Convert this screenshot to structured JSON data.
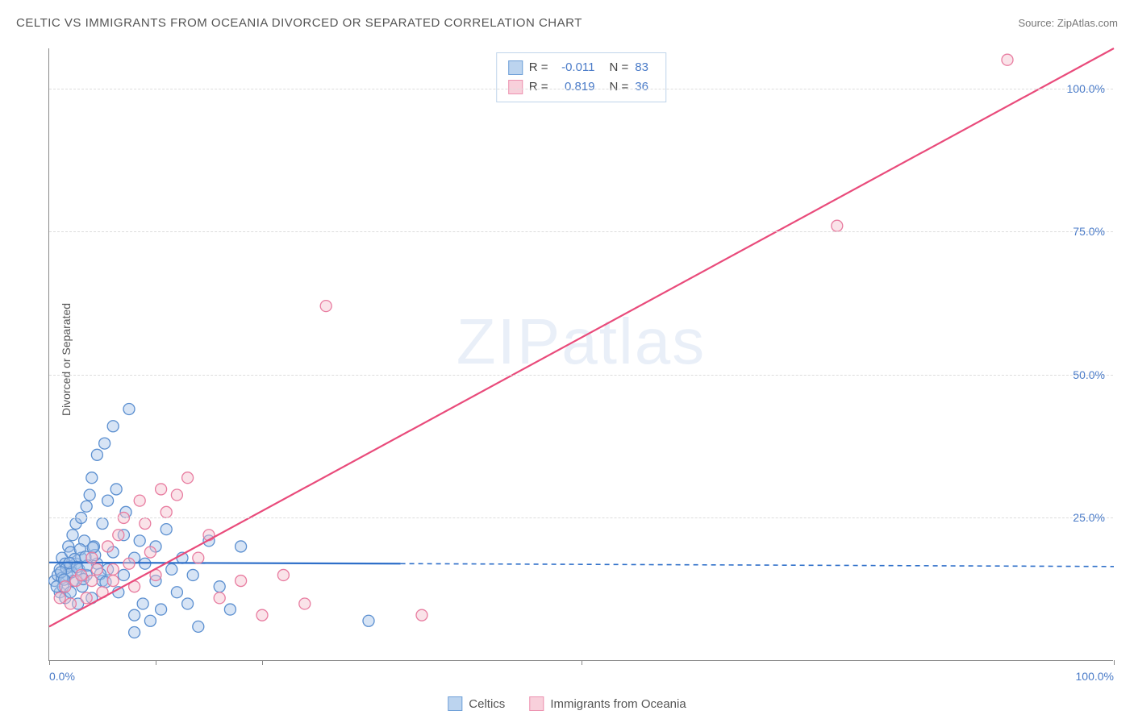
{
  "title": "CELTIC VS IMMIGRANTS FROM OCEANIA DIVORCED OR SEPARATED CORRELATION CHART",
  "source": "Source: ZipAtlas.com",
  "ylabel": "Divorced or Separated",
  "watermark_a": "ZIP",
  "watermark_b": "atlas",
  "chart": {
    "type": "scatter",
    "xlim": [
      0,
      100
    ],
    "ylim": [
      0,
      107
    ],
    "x_ticks": [
      0,
      10,
      20,
      50,
      100
    ],
    "x_tick_labels": {
      "0": "0.0%",
      "100": "100.0%"
    },
    "y_gridlines": [
      25,
      50,
      75,
      100
    ],
    "y_tick_labels": [
      "25.0%",
      "50.0%",
      "75.0%",
      "100.0%"
    ],
    "background": "#ffffff",
    "grid_color": "#dddddd",
    "axis_color": "#888888",
    "label_color": "#4a7bc8",
    "marker_radius": 7,
    "marker_opacity": 0.45,
    "series": [
      {
        "name": "Celtics",
        "color_fill": "#a7c4e8",
        "color_stroke": "#5b8fd0",
        "swatch_fill": "#bcd4ef",
        "swatch_border": "#6fa0d8",
        "R": "-0.011",
        "N": "83",
        "trend": {
          "solid": {
            "x1": 0,
            "y1": 17.2,
            "x2": 33,
            "y2": 17.0
          },
          "dashed": {
            "x1": 33,
            "y1": 17.0,
            "x2": 100,
            "y2": 16.5
          },
          "stroke": "#2e6fc9",
          "width": 2.2
        },
        "points": [
          [
            0.5,
            14
          ],
          [
            0.8,
            15
          ],
          [
            1,
            12
          ],
          [
            1,
            16
          ],
          [
            1.2,
            18
          ],
          [
            1.3,
            13
          ],
          [
            1.5,
            17
          ],
          [
            1.5,
            11
          ],
          [
            1.7,
            15
          ],
          [
            1.8,
            20
          ],
          [
            2,
            16.5
          ],
          [
            2,
            12
          ],
          [
            2,
            19
          ],
          [
            2.2,
            22
          ],
          [
            2.3,
            14
          ],
          [
            2.5,
            17
          ],
          [
            2.5,
            24
          ],
          [
            2.7,
            10
          ],
          [
            2.8,
            16
          ],
          [
            3,
            18
          ],
          [
            3,
            25
          ],
          [
            3.1,
            13
          ],
          [
            3.3,
            21
          ],
          [
            3.5,
            27
          ],
          [
            3.5,
            15
          ],
          [
            3.8,
            29
          ],
          [
            4,
            11
          ],
          [
            4,
            32
          ],
          [
            4.2,
            20
          ],
          [
            4.5,
            17
          ],
          [
            4.5,
            36
          ],
          [
            5,
            24
          ],
          [
            5,
            14
          ],
          [
            5.2,
            38
          ],
          [
            5.5,
            28
          ],
          [
            5.5,
            16
          ],
          [
            6,
            19
          ],
          [
            6,
            41
          ],
          [
            6.3,
            30
          ],
          [
            6.5,
            12
          ],
          [
            7,
            22
          ],
          [
            7,
            15
          ],
          [
            7.2,
            26
          ],
          [
            7.5,
            44
          ],
          [
            8,
            18
          ],
          [
            8,
            5
          ],
          [
            8.5,
            21
          ],
          [
            8.8,
            10
          ],
          [
            9,
            17
          ],
          [
            9.5,
            7
          ],
          [
            10,
            20
          ],
          [
            10,
            14
          ],
          [
            10.5,
            9
          ],
          [
            11,
            23
          ],
          [
            11.5,
            16
          ],
          [
            12,
            12
          ],
          [
            12.5,
            18
          ],
          [
            13,
            10
          ],
          [
            13.5,
            15
          ],
          [
            14,
            6
          ],
          [
            15,
            21
          ],
          [
            16,
            13
          ],
          [
            17,
            9
          ],
          [
            18,
            20
          ],
          [
            1.2,
            14.5
          ],
          [
            1.6,
            16.2
          ],
          [
            2.1,
            15.5
          ],
          [
            2.4,
            17.8
          ],
          [
            2.9,
            19.5
          ],
          [
            3.2,
            14.3
          ],
          [
            3.6,
            16.7
          ],
          [
            4.3,
            18.5
          ],
          [
            4.8,
            15.2
          ],
          [
            5.3,
            13.8
          ],
          [
            0.7,
            13
          ],
          [
            1.1,
            15.5
          ],
          [
            1.4,
            14.2
          ],
          [
            1.9,
            17.1
          ],
          [
            2.6,
            16.4
          ],
          [
            3.4,
            18.2
          ],
          [
            4.1,
            19.8
          ],
          [
            30,
            7
          ],
          [
            8,
            8
          ]
        ]
      },
      {
        "name": "Immigrants from Oceania",
        "color_fill": "#f4c0ce",
        "color_stroke": "#e87ca0",
        "swatch_fill": "#f8d0db",
        "swatch_border": "#ed92b0",
        "R": "0.819",
        "N": "36",
        "trend": {
          "solid": {
            "x1": 0,
            "y1": 6,
            "x2": 100,
            "y2": 107
          },
          "stroke": "#e94b7b",
          "width": 2.2
        },
        "points": [
          [
            1,
            11
          ],
          [
            1.5,
            13
          ],
          [
            2,
            10
          ],
          [
            2.5,
            14
          ],
          [
            3,
            15
          ],
          [
            3.5,
            11
          ],
          [
            4,
            18
          ],
          [
            4.5,
            16
          ],
          [
            5,
            12
          ],
          [
            5.5,
            20
          ],
          [
            6,
            14
          ],
          [
            6.5,
            22
          ],
          [
            7,
            25
          ],
          [
            7.5,
            17
          ],
          [
            8,
            13
          ],
          [
            8.5,
            28
          ],
          [
            9,
            24
          ],
          [
            9.5,
            19
          ],
          [
            10,
            15
          ],
          [
            10.5,
            30
          ],
          [
            11,
            26
          ],
          [
            12,
            29
          ],
          [
            13,
            32
          ],
          [
            14,
            18
          ],
          [
            15,
            22
          ],
          [
            16,
            11
          ],
          [
            18,
            14
          ],
          [
            20,
            8
          ],
          [
            22,
            15
          ],
          [
            24,
            10
          ],
          [
            26,
            62
          ],
          [
            35,
            8
          ],
          [
            74,
            76
          ],
          [
            90,
            105
          ],
          [
            4,
            14
          ],
          [
            6,
            16
          ]
        ]
      }
    ]
  },
  "legend_bottom": [
    {
      "label": "Celtics",
      "series": 0
    },
    {
      "label": "Immigrants from Oceania",
      "series": 1
    }
  ]
}
